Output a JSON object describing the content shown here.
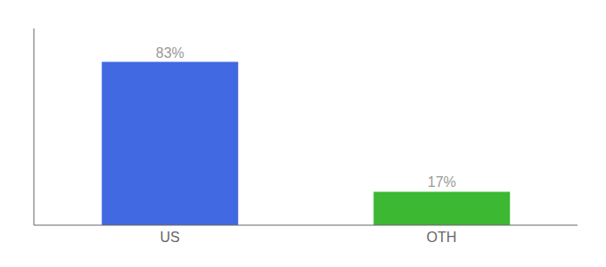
{
  "chart_data": {
    "type": "bar",
    "categories": [
      "US",
      "OTH"
    ],
    "values": [
      83,
      17
    ],
    "value_labels": [
      "83%",
      "17%"
    ],
    "colors": [
      "#4169e1",
      "#3cb832"
    ],
    "ylim": [
      0,
      100
    ],
    "yticks": [],
    "tick_labels": "x",
    "data_labels": true
  }
}
